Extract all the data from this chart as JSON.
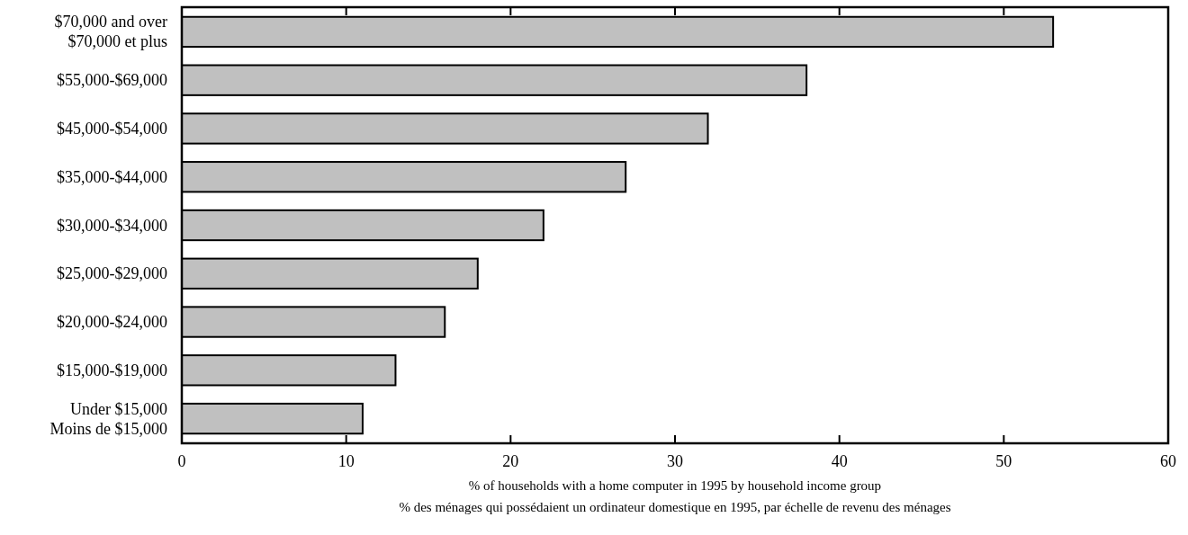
{
  "chart_data": {
    "type": "bar",
    "orientation": "horizontal",
    "categories": [
      "$70,000 and over\n$70,000 et plus",
      "$55,000-$69,000",
      "$45,000-$54,000",
      "$35,000-$44,000",
      "$30,000-$34,000",
      "$25,000-$29,000",
      "$20,000-$24,000",
      "$15,000-$19,000",
      "Under $15,000\nMoins de $15,000"
    ],
    "values": [
      53,
      38,
      32,
      27,
      22,
      18,
      16,
      13,
      11
    ],
    "color": "#c0c0c0",
    "xlim": [
      0,
      60
    ],
    "xticks": [
      0,
      10,
      20,
      30,
      40,
      50,
      60
    ],
    "xlabel": "% of households with a home computer in 1995 by household income group\n% des ménages qui possédaient un ordinateur domestique en 1995, par échelle de revenu des ménages",
    "grid": false
  }
}
